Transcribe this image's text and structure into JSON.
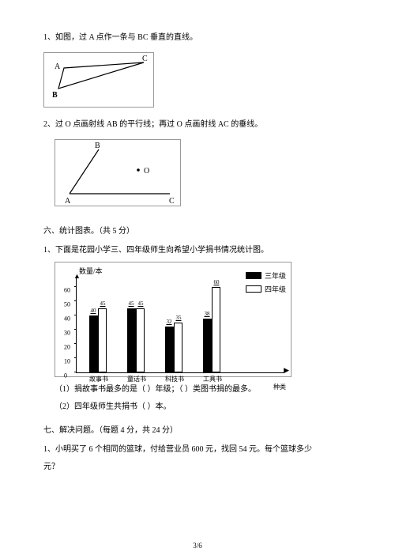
{
  "q1": {
    "text": "1、如图，过 A 点作一条与 BC 垂直的直线。",
    "labels": {
      "A": "A",
      "B": "B",
      "C": "C"
    }
  },
  "q2": {
    "text": "2、过 O 点画射线 AB 的平行线；再过 O 点画射线 AC 的垂线。",
    "labels": {
      "A": "A",
      "B": "B",
      "C": "C",
      "O": "O"
    }
  },
  "section6": {
    "title": "六、统计图表。（共 5 分）",
    "q1": "1、下面是花园小学三、四年级师生向希望小学捐书情况统计图。",
    "chart": {
      "ylabel": "数量/本",
      "xlabel": "种类",
      "yticks": [
        0,
        10,
        20,
        30,
        40,
        50,
        60
      ],
      "ymax": 60,
      "legend": {
        "g3": "三年级",
        "g4": "四年级"
      },
      "categories": [
        {
          "name": "故事书",
          "g3": 40,
          "g4": 45
        },
        {
          "name": "童话书",
          "g3": 45,
          "g4": 45
        },
        {
          "name": "科技书",
          "g3": 32,
          "g4": 35
        },
        {
          "name": "工具书",
          "g3": 38,
          "g4": 60
        }
      ]
    },
    "sub1": "（1）捐故事书最多的是（ ）年级；（ ）类图书捐的最多。",
    "sub2": "（2）四年级师生共捐书（ ）本。"
  },
  "section7": {
    "title": "七、解决问题。（每题 4 分，共 24 分）",
    "q1a": "1、小明买了 6 个相同的篮球，付给营业员 600 元，找回 54 元。每个篮球多少",
    "q1b": "元？"
  },
  "pagenum": "3/6"
}
